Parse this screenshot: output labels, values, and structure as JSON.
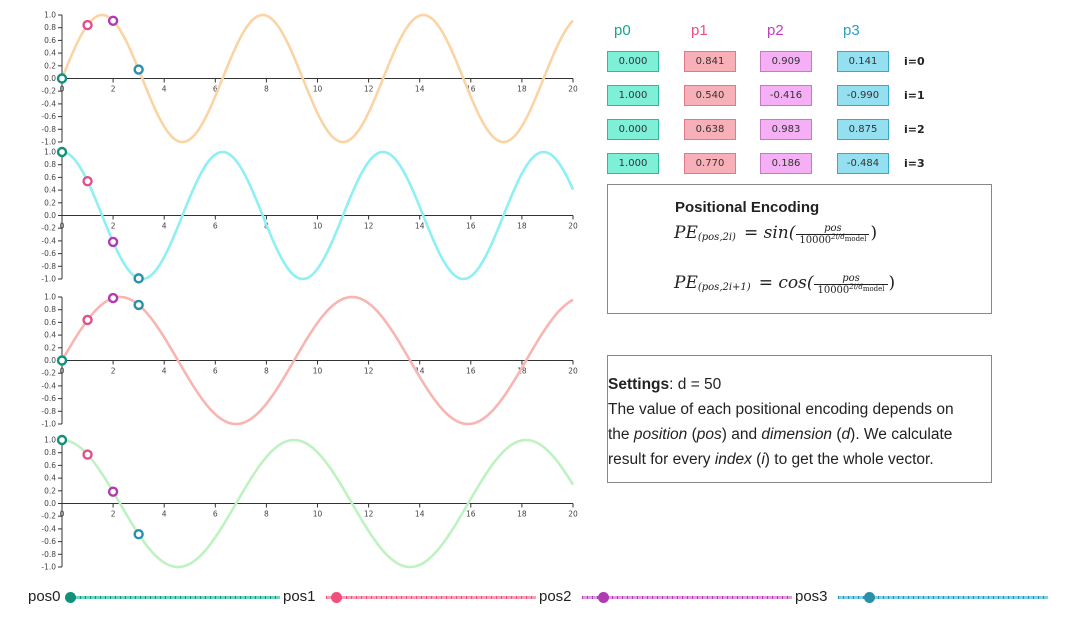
{
  "chart_data": [
    {
      "type": "line",
      "series": [
        {
          "values_fn": "sin(pos / 10000^(0/50))"
        }
      ],
      "xlim": [
        0,
        20
      ],
      "ylim": [
        -1,
        1
      ],
      "x_ticks": [
        0,
        2,
        4,
        6,
        8,
        10,
        12,
        14,
        16,
        18,
        20
      ],
      "y_ticks": [
        "1.0",
        "0.8",
        "0.6",
        "0.4",
        "0.2",
        "0.0",
        "-0.2",
        "-0.4",
        "-0.6",
        "-0.8",
        "-1.0"
      ],
      "points": [
        {
          "label": "p0",
          "x": 0,
          "y": 0.0
        },
        {
          "label": "p1",
          "x": 1,
          "y": 0.841
        },
        {
          "label": "p2",
          "x": 2,
          "y": 0.909
        },
        {
          "label": "p3",
          "x": 3,
          "y": 0.141
        }
      ]
    },
    {
      "type": "line",
      "series": [
        {
          "values_fn": "cos(pos / 10000^(0/50))"
        }
      ],
      "xlim": [
        0,
        20
      ],
      "ylim": [
        -1,
        1
      ],
      "x_ticks": [
        0,
        2,
        4,
        6,
        8,
        10,
        12,
        14,
        16,
        18,
        20
      ],
      "y_ticks": [
        "1.0",
        "0.8",
        "0.6",
        "0.4",
        "0.2",
        "0.0",
        "-0.2",
        "-0.4",
        "-0.6",
        "-0.8",
        "-1.0"
      ],
      "points": [
        {
          "label": "p0",
          "x": 0,
          "y": 1.0
        },
        {
          "label": "p1",
          "x": 1,
          "y": 0.54
        },
        {
          "label": "p2",
          "x": 2,
          "y": -0.416
        },
        {
          "label": "p3",
          "x": 3,
          "y": -0.99
        }
      ]
    },
    {
      "type": "line",
      "series": [
        {
          "values_fn": "sin(pos / 10000^(2/50))"
        }
      ],
      "xlim": [
        0,
        20
      ],
      "ylim": [
        -1,
        1
      ],
      "x_ticks": [
        0,
        2,
        4,
        6,
        8,
        10,
        12,
        14,
        16,
        18,
        20
      ],
      "y_ticks": [
        "1.0",
        "0.8",
        "0.6",
        "0.4",
        "0.2",
        "0.0",
        "-0.2",
        "-0.4",
        "-0.6",
        "-0.8",
        "-1.0"
      ],
      "points": [
        {
          "label": "p0",
          "x": 0,
          "y": 0.0
        },
        {
          "label": "p1",
          "x": 1,
          "y": 0.638
        },
        {
          "label": "p2",
          "x": 2,
          "y": 0.983
        },
        {
          "label": "p3",
          "x": 3,
          "y": 0.875
        }
      ]
    },
    {
      "type": "line",
      "series": [
        {
          "values_fn": "cos(pos / 10000^(2/50))"
        }
      ],
      "xlim": [
        0,
        20
      ],
      "ylim": [
        -1,
        1
      ],
      "x_ticks": [
        0,
        2,
        4,
        6,
        8,
        10,
        12,
        14,
        16,
        18,
        20
      ],
      "y_ticks": [
        "1.0",
        "0.8",
        "0.6",
        "0.4",
        "0.2",
        "0.0",
        "-0.2",
        "-0.4",
        "-0.6",
        "-0.8",
        "-1.0"
      ],
      "points": [
        {
          "label": "p0",
          "x": 0,
          "y": 1.0
        },
        {
          "label": "p1",
          "x": 1,
          "y": 0.77
        },
        {
          "label": "p2",
          "x": 2,
          "y": 0.186
        },
        {
          "label": "p3",
          "x": 3,
          "y": -0.484
        }
      ]
    }
  ],
  "curve_colors": [
    "#fbd4a4",
    "#8eeff4",
    "#f8b5b1",
    "#bff2c1"
  ],
  "point_colors": [
    "#12917a",
    "#e0508a",
    "#b03ab0",
    "#2a8faa"
  ],
  "table": {
    "headers": [
      "p0",
      "p1",
      "p2",
      "p3"
    ],
    "header_colors": [
      "#17a58a",
      "#e8507e",
      "#c040c0",
      "#2a9fc4"
    ],
    "cell_fill": [
      "#7ff0d8",
      "#f8b0b8",
      "#f5b0f5",
      "#95e0f0"
    ],
    "cell_border": [
      "#2fb89a",
      "#e07a8a",
      "#c878c8",
      "#3aa8c8"
    ],
    "rows": [
      {
        "label": "i=0",
        "values": [
          "0.000",
          "0.841",
          "0.909",
          "0.141"
        ]
      },
      {
        "label": "i=1",
        "values": [
          "1.000",
          "0.540",
          "-0.416",
          "-0.990"
        ]
      },
      {
        "label": "i=2",
        "values": [
          "0.000",
          "0.638",
          "0.983",
          "0.875"
        ]
      },
      {
        "label": "i=3",
        "values": [
          "1.000",
          "0.770",
          "0.186",
          "-0.484"
        ]
      }
    ]
  },
  "pe": {
    "title": "Positional Encoding",
    "f1_lhs": "PE",
    "f1_sub": "(pos,2i)",
    "f1_eq": "= sin(",
    "f1_num": "pos",
    "f1_den": "10000",
    "f1_exp": "2i/d",
    "f1_model": "model",
    "f1_close": ")",
    "f2_lhs": "PE",
    "f2_sub": "(pos,2i+1)",
    "f2_eq": "= cos(",
    "f2_num": "pos",
    "f2_den": "10000",
    "f2_exp": "2i/d",
    "f2_model": "model",
    "f2_close": ")"
  },
  "settings": {
    "label": "Settings",
    "d_text": ": d = 50",
    "line1": "The value of each positional encoding depends on",
    "line2a": "the ",
    "position": "position",
    "line2b": " (",
    "pos": "pos",
    "line2c": ") and ",
    "dimension": "dimension",
    "line2d": " (",
    "d": "d",
    "line2e": "). We calculate",
    "line3a": "result for every ",
    "index": "index",
    "line3b": " (",
    "i": "i",
    "line3c": ") to get the whole vector."
  },
  "sliders": [
    {
      "label": "pos0",
      "value": 0,
      "color": "#12917a",
      "track": "#6fd3bd"
    },
    {
      "label": "pos1",
      "value": 1,
      "color": "#f0507a",
      "track": "#f6a0b6"
    },
    {
      "label": "pos2",
      "value": 2,
      "color": "#b03ab0",
      "track": "#e09ae0"
    },
    {
      "label": "pos3",
      "value": 3,
      "color": "#2a8faa",
      "track": "#7fd0e8"
    }
  ],
  "slider_range": [
    0,
    20
  ]
}
